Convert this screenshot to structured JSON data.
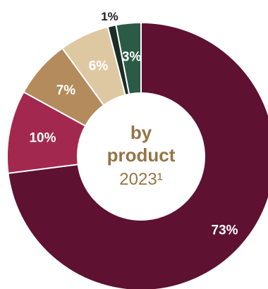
{
  "chart_data": {
    "type": "pie",
    "center_label": {
      "line1": "by",
      "line2": "product",
      "line3": "2023¹"
    },
    "slices": [
      {
        "label": "73%",
        "value": 73,
        "color": "#5e1131",
        "text_color": "#ffffff"
      },
      {
        "label": "10%",
        "value": 10,
        "color": "#a3284f",
        "text_color": "#ffffff"
      },
      {
        "label": "7%",
        "value": 7,
        "color": "#b38b5c",
        "text_color": "#ffffff"
      },
      {
        "label": "6%",
        "value": 6,
        "color": "#dec8a2",
        "text_color": "#ffffff"
      },
      {
        "label": "1%",
        "value": 1,
        "color": "#1a2e27",
        "text_color": "#231f20",
        "label_outside": true
      },
      {
        "label": "3%",
        "value": 3,
        "color": "#2b5a47",
        "text_color": "#ffffff"
      }
    ]
  }
}
